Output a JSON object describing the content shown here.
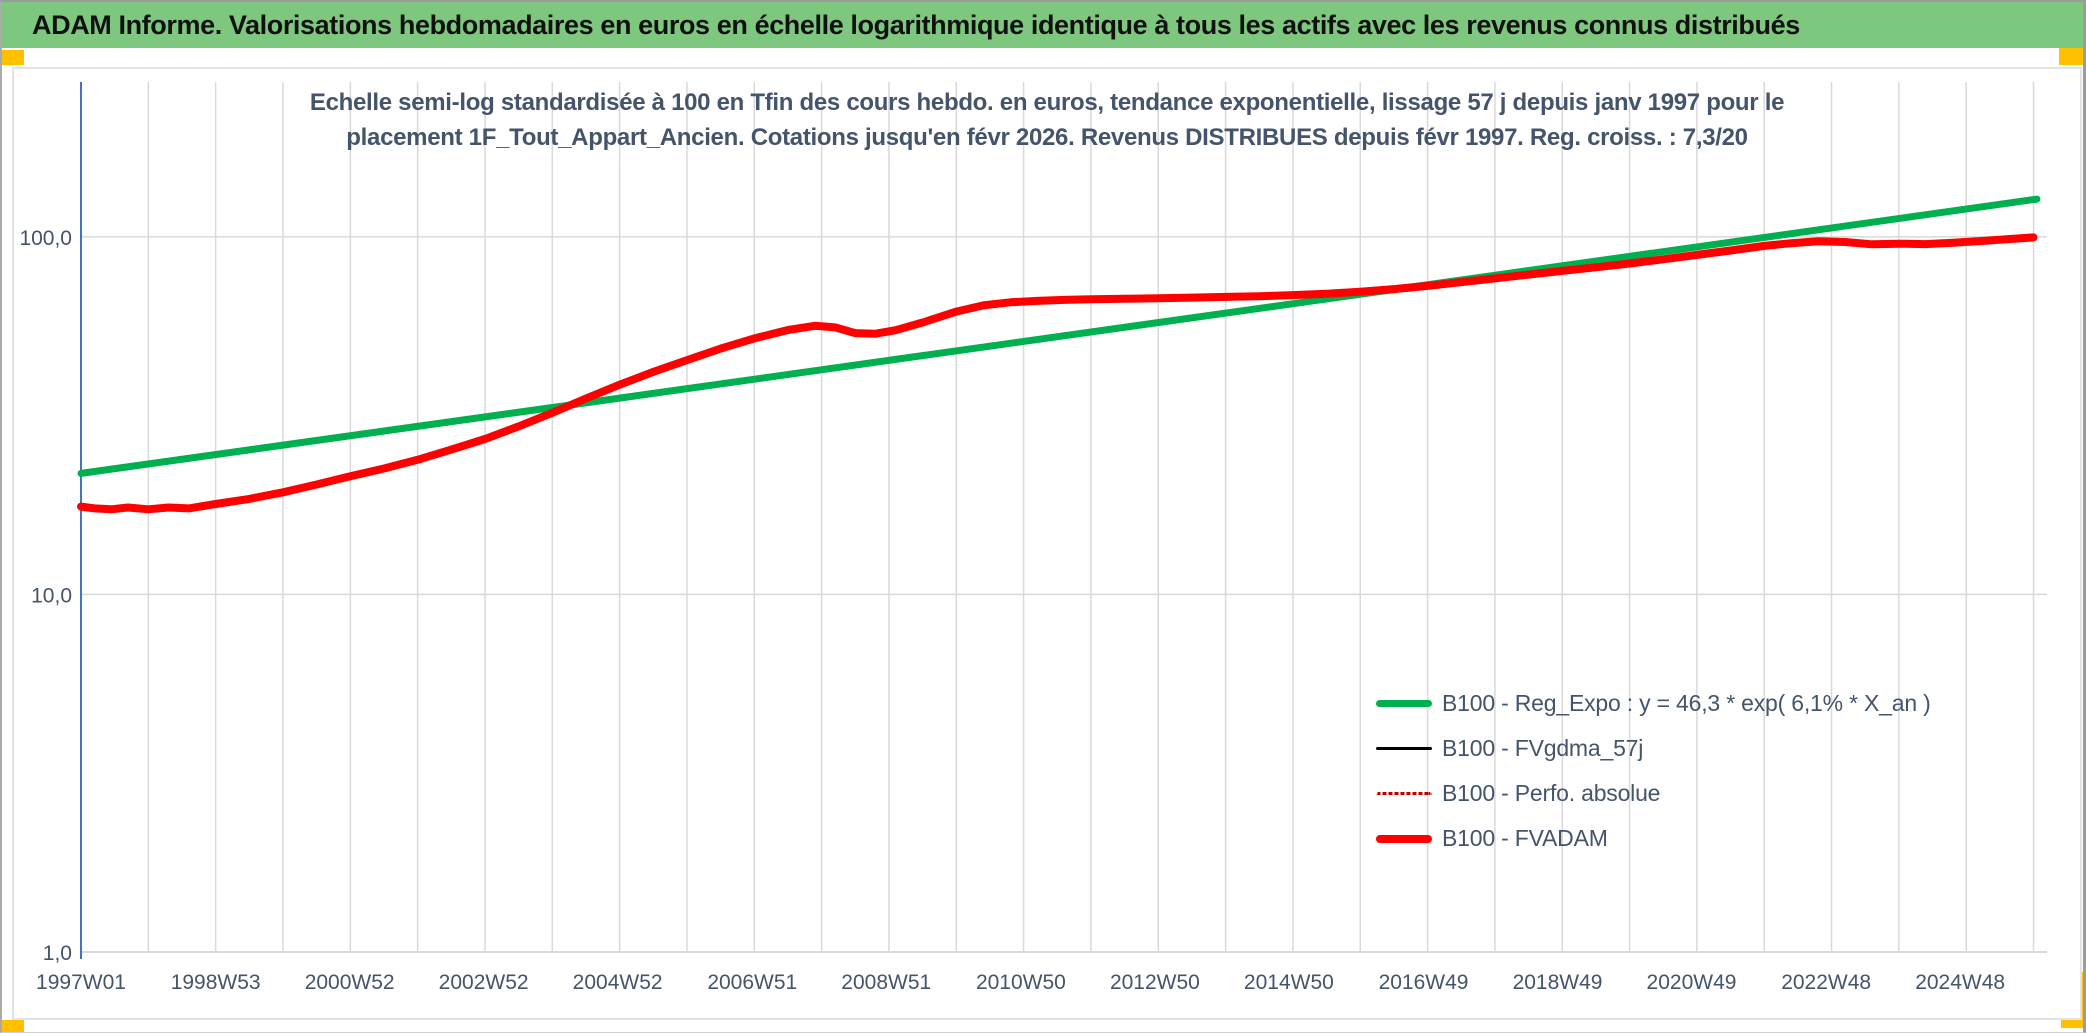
{
  "header": {
    "title": "ADAM Informe. Valorisations hebdomadaires en euros en échelle logarithmique identique à tous les actifs avec les revenus connus distribués"
  },
  "theme": {
    "header_bg": "#7DC87E",
    "accent": "#FFC000",
    "text_dark": "#44546A",
    "grid_line": "#D9D9D9",
    "axis_line": "#4472C4",
    "header_text": "#111111"
  },
  "chart_data": {
    "type": "line",
    "title_line1": "Echelle semi-log standardisée à 100 en Tfin des cours hebdo. en euros, tendance exponentielle, lissage 57 j depuis janv 1997 pour le",
    "title_line2": "placement 1F_Tout_Appart_Ancien. Cotations jusqu'en févr 2026. Revenus DISTRIBUES depuis févr 1997. Reg. croiss. : 7,3/20",
    "grid": true,
    "legend_position": "inside-right",
    "x_axis": {
      "range": [
        1997.0,
        2026.2
      ],
      "grid_interval_years": 1,
      "ticks": [
        {
          "label": "1997W01",
          "year": 1997.0
        },
        {
          "label": "1998W53",
          "year": 1999.0
        },
        {
          "label": "2000W52",
          "year": 2000.99
        },
        {
          "label": "2002W52",
          "year": 2002.98
        },
        {
          "label": "2004W52",
          "year": 2004.97
        },
        {
          "label": "2006W51",
          "year": 2006.97
        },
        {
          "label": "2008W51",
          "year": 2008.96
        },
        {
          "label": "2010W50",
          "year": 2010.96
        },
        {
          "label": "2012W50",
          "year": 2012.95
        },
        {
          "label": "2014W50",
          "year": 2014.94
        },
        {
          "label": "2016W49",
          "year": 2016.94
        },
        {
          "label": "2018W49",
          "year": 2018.93
        },
        {
          "label": "2020W49",
          "year": 2020.92
        },
        {
          "label": "2022W48",
          "year": 2022.92
        },
        {
          "label": "2024W48",
          "year": 2024.91
        }
      ]
    },
    "y_axis": {
      "scale": "log",
      "range": [
        1,
        271
      ],
      "ticks": [
        {
          "value": 1,
          "label": "1,0"
        },
        {
          "value": 10,
          "label": "10,0"
        },
        {
          "value": 100,
          "label": "100,0"
        }
      ]
    },
    "series": [
      {
        "name": "B100 - Reg_Expo : y = 46,3 * exp( 6,1% *  X_an )",
        "color": "#00B050",
        "width": 7,
        "style": "solid",
        "points": [
          [
            1997.0,
            21.8
          ],
          [
            2005.0,
            35.4
          ],
          [
            2015.0,
            65.0
          ],
          [
            2026.05,
            127.5
          ]
        ]
      },
      {
        "name": "B100 - FVgdma_57j",
        "color": "#000000",
        "width": 3,
        "style": "solid",
        "points": []
      },
      {
        "name": "B100 - Perfo. absolue",
        "color": "#C00000",
        "width": 3,
        "style": "dotted",
        "points": []
      },
      {
        "name": "B100 - FVADAM",
        "color": "#FF0000",
        "width": 8,
        "style": "solid",
        "points": [
          [
            1997.0,
            17.6
          ],
          [
            1997.2,
            17.4
          ],
          [
            1997.45,
            17.3
          ],
          [
            1997.7,
            17.5
          ],
          [
            1998.0,
            17.3
          ],
          [
            1998.3,
            17.5
          ],
          [
            1998.6,
            17.4
          ],
          [
            1999.0,
            17.9
          ],
          [
            1999.5,
            18.5
          ],
          [
            2000.0,
            19.3
          ],
          [
            2000.5,
            20.3
          ],
          [
            2001.0,
            21.4
          ],
          [
            2001.5,
            22.5
          ],
          [
            2002.0,
            23.8
          ],
          [
            2002.5,
            25.4
          ],
          [
            2003.0,
            27.2
          ],
          [
            2003.5,
            29.5
          ],
          [
            2004.0,
            32.2
          ],
          [
            2004.5,
            35.3
          ],
          [
            2005.0,
            38.6
          ],
          [
            2005.5,
            41.9
          ],
          [
            2006.0,
            45.2
          ],
          [
            2006.5,
            48.7
          ],
          [
            2007.0,
            52.0
          ],
          [
            2007.5,
            54.9
          ],
          [
            2007.9,
            56.4
          ],
          [
            2008.2,
            55.8
          ],
          [
            2008.5,
            53.8
          ],
          [
            2008.8,
            53.6
          ],
          [
            2009.1,
            54.8
          ],
          [
            2009.5,
            57.6
          ],
          [
            2010.0,
            61.8
          ],
          [
            2010.4,
            64.3
          ],
          [
            2010.8,
            65.6
          ],
          [
            2011.2,
            66.2
          ],
          [
            2011.6,
            66.6
          ],
          [
            2012.0,
            66.9
          ],
          [
            2012.5,
            67.1
          ],
          [
            2013.0,
            67.3
          ],
          [
            2013.5,
            67.6
          ],
          [
            2014.0,
            67.9
          ],
          [
            2014.5,
            68.2
          ],
          [
            2015.0,
            68.7
          ],
          [
            2015.5,
            69.3
          ],
          [
            2016.0,
            70.2
          ],
          [
            2016.5,
            71.4
          ],
          [
            2017.0,
            72.9
          ],
          [
            2017.5,
            74.7
          ],
          [
            2018.0,
            76.5
          ],
          [
            2018.5,
            78.4
          ],
          [
            2019.0,
            80.3
          ],
          [
            2019.5,
            82.2
          ],
          [
            2020.0,
            84.2
          ],
          [
            2020.5,
            86.5
          ],
          [
            2021.0,
            89.0
          ],
          [
            2021.5,
            91.6
          ],
          [
            2022.0,
            94.3
          ],
          [
            2022.4,
            96.0
          ],
          [
            2022.8,
            97.2
          ],
          [
            2023.2,
            96.7
          ],
          [
            2023.6,
            95.3
          ],
          [
            2024.0,
            95.7
          ],
          [
            2024.4,
            95.4
          ],
          [
            2024.8,
            96.3
          ],
          [
            2025.2,
            97.3
          ],
          [
            2025.6,
            98.4
          ],
          [
            2026.0,
            99.6
          ]
        ]
      }
    ]
  }
}
